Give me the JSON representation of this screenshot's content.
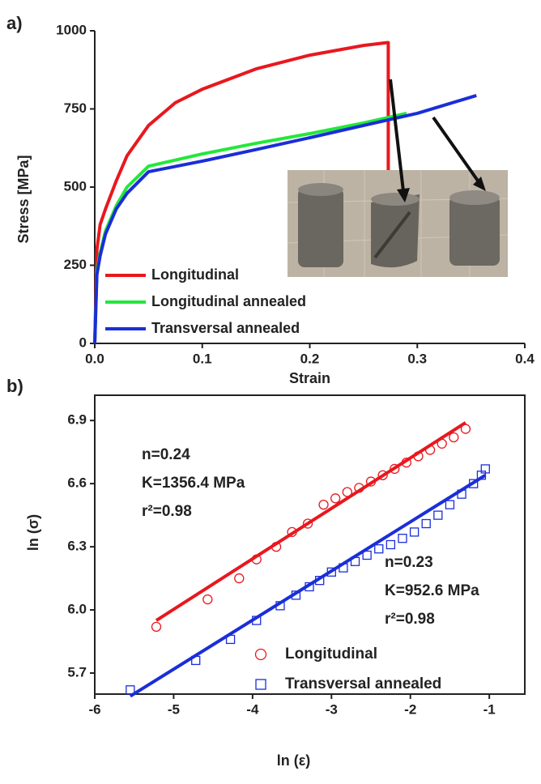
{
  "chart_data": [
    {
      "type": "line",
      "label": "a)",
      "x_label": "Strain",
      "y_label": "Stress [MPa]",
      "xlim": [
        0,
        0.4
      ],
      "xticks": [
        {
          "value": 0,
          "label": "0.0"
        },
        0.1,
        0.2,
        0.3,
        0.4
      ],
      "ylim": [
        0,
        1000
      ],
      "yticks": [
        0,
        250,
        500,
        750,
        1000
      ],
      "box": false,
      "legend": "lower left",
      "series": [
        {
          "name": "Longitudinal",
          "color": "#e8181e",
          "x": [
            0,
            0.002,
            0.005,
            0.01,
            0.02,
            0.03,
            0.05,
            0.075,
            0.1,
            0.15,
            0.2,
            0.25,
            0.272,
            0.273,
            0.273
          ],
          "values": [
            0,
            300,
            380,
            430,
            520,
            600,
            697,
            770,
            813,
            878,
            922,
            953,
            962,
            962,
            550
          ]
        },
        {
          "name": "Longitudinal annealed",
          "color": "#22e83a",
          "x": [
            0,
            0.002,
            0.005,
            0.01,
            0.02,
            0.03,
            0.05,
            0.1,
            0.15,
            0.2,
            0.25,
            0.29
          ],
          "values": [
            0,
            230,
            290,
            360,
            440,
            500,
            567,
            606,
            640,
            671,
            705,
            736
          ]
        },
        {
          "name": "Transversal annealed",
          "color": "#1a2ed8",
          "x": [
            0,
            0.002,
            0.005,
            0.01,
            0.02,
            0.03,
            0.05,
            0.1,
            0.15,
            0.2,
            0.25,
            0.3,
            0.355
          ],
          "values": [
            0,
            220,
            280,
            350,
            430,
            480,
            549,
            583,
            620,
            658,
            697,
            736,
            793
          ]
        }
      ]
    },
    {
      "type": "scatter",
      "label": "b)",
      "x_label": "ln (ε)",
      "y_label": "ln (σ)",
      "xlim": [
        -6,
        -0.55
      ],
      "xticks": [
        -6,
        -5,
        -4,
        -3,
        -2,
        -1
      ],
      "ylim": [
        5.6,
        7.02
      ],
      "yticks": [
        5.7,
        {
          "value": 6,
          "label": "6.0"
        },
        6.3,
        6.6,
        6.9
      ],
      "box": true,
      "legend": "lower right",
      "series": [
        {
          "name": "Longitudinal",
          "color": "#e8181e",
          "marker": "circle",
          "x": [
            -5.22,
            -4.57,
            -4.17,
            -3.95,
            -3.7,
            -3.5,
            -3.3,
            -3.1,
            -2.95,
            -2.8,
            -2.65,
            -2.5,
            -2.35,
            -2.2,
            -2.05,
            -1.9,
            -1.75,
            -1.6,
            -1.45,
            -1.3
          ],
          "values": [
            5.92,
            6.05,
            6.15,
            6.24,
            6.3,
            6.37,
            6.41,
            6.5,
            6.53,
            6.56,
            6.58,
            6.61,
            6.64,
            6.67,
            6.7,
            6.73,
            6.76,
            6.79,
            6.82,
            6.86
          ]
        },
        {
          "name": "Transversal annealed",
          "color": "#1a2ed8",
          "marker": "square",
          "x": [
            -5.55,
            -4.72,
            -4.28,
            -3.95,
            -3.65,
            -3.45,
            -3.28,
            -3.15,
            -3.0,
            -2.85,
            -2.7,
            -2.55,
            -2.4,
            -2.25,
            -2.1,
            -1.95,
            -1.8,
            -1.65,
            -1.5,
            -1.35,
            -1.2,
            -1.1,
            -1.05
          ],
          "values": [
            5.62,
            5.76,
            5.86,
            5.95,
            6.02,
            6.07,
            6.11,
            6.14,
            6.18,
            6.2,
            6.23,
            6.26,
            6.29,
            6.31,
            6.34,
            6.37,
            6.41,
            6.45,
            6.5,
            6.55,
            6.6,
            6.64,
            6.67
          ]
        }
      ],
      "fit_lines": [
        {
          "color": "#e8181e",
          "x": [
            -5.22,
            -1.3
          ],
          "values": [
            5.95,
            6.89
          ]
        },
        {
          "color": "#1a2ed8",
          "x": [
            -5.55,
            -1.05
          ],
          "values": [
            5.59,
            6.64
          ]
        }
      ],
      "annotations": [
        [
          "n=0.24",
          "K=1356.4 MPa",
          "r²=0.98"
        ],
        [
          "n=0.23",
          "K=952.6 MPa",
          "r²=0.98"
        ]
      ]
    }
  ]
}
